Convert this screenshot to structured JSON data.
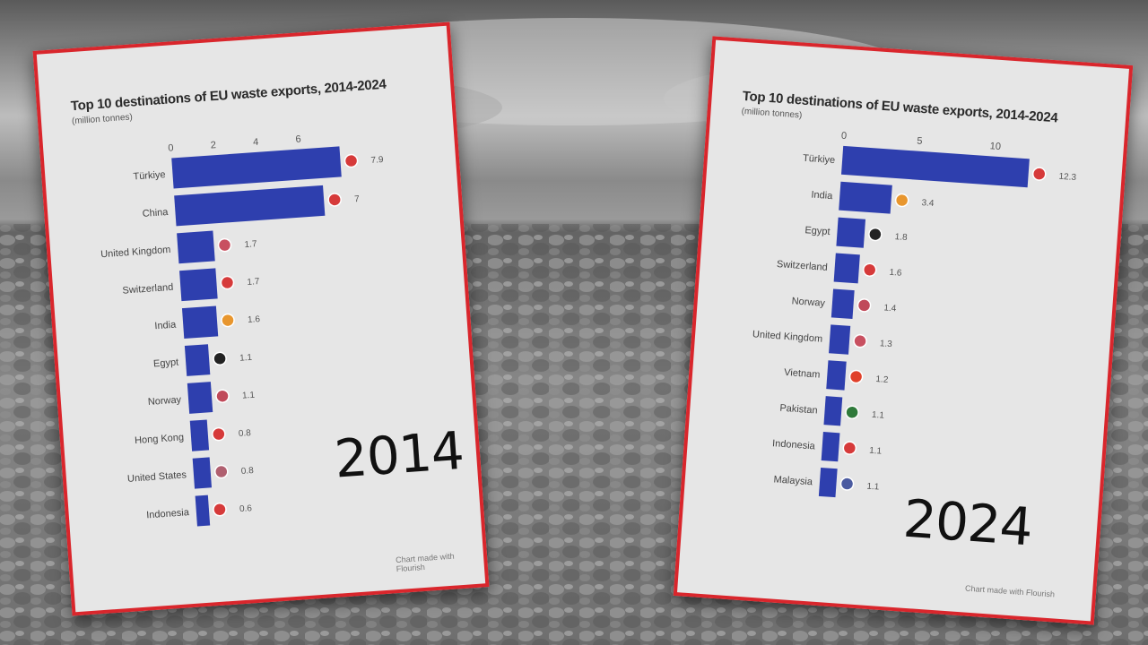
{
  "chart_data": [
    {
      "type": "bar",
      "orientation": "horizontal",
      "title": "Top 10 destinations of EU waste exports, 2014-2024",
      "subtitle": "(million tonnes)",
      "year": "2014",
      "credit": "Chart made with Flourish",
      "xticks": [
        0,
        2,
        4,
        6
      ],
      "xlim": [
        0,
        8
      ],
      "categories": [
        "Türkiye",
        "China",
        "United Kingdom",
        "Switzerland",
        "India",
        "Egypt",
        "Norway",
        "Hong Kong",
        "United States",
        "Indonesia"
      ],
      "values": [
        7.9,
        7,
        1.7,
        1.7,
        1.6,
        1.1,
        1.1,
        0.8,
        0.8,
        0.6
      ],
      "value_labels": [
        "7.9",
        "7",
        "1.7",
        "1.7",
        "1.6",
        "1.1",
        "1.1",
        "0.8",
        "0.8",
        "0.6"
      ],
      "bar_color": "#2e3fae",
      "flag_colors": [
        "#d63a3a",
        "#d63a3a",
        "#c85060",
        "#d63a3a",
        "#e8962e",
        "#222222",
        "#c04a5a",
        "#d63a3a",
        "#b06070",
        "#d63a3a"
      ]
    },
    {
      "type": "bar",
      "orientation": "horizontal",
      "title": "Top 10 destinations of EU waste exports, 2014-2024",
      "subtitle": "(million tonnes)",
      "year": "2024",
      "credit": "Chart made with Flourish",
      "xticks": [
        0,
        5,
        10
      ],
      "xlim": [
        0,
        13
      ],
      "categories": [
        "Türkiye",
        "India",
        "Egypt",
        "Switzerland",
        "Norway",
        "United Kingdom",
        "Vietnam",
        "Pakistan",
        "Indonesia",
        "Malaysia"
      ],
      "values": [
        12.3,
        3.4,
        1.8,
        1.6,
        1.4,
        1.3,
        1.2,
        1.1,
        1.1,
        1.1
      ],
      "value_labels": [
        "12.3",
        "3.4",
        "1.8",
        "1.6",
        "1.4",
        "1.3",
        "1.2",
        "1.1",
        "1.1",
        "1.1"
      ],
      "bar_color": "#2e3fae",
      "flag_colors": [
        "#d63a3a",
        "#e8962e",
        "#222222",
        "#d63a3a",
        "#c04a5a",
        "#c85060",
        "#e0402a",
        "#2f7a3a",
        "#d63a3a",
        "#4a5aa0"
      ]
    }
  ]
}
